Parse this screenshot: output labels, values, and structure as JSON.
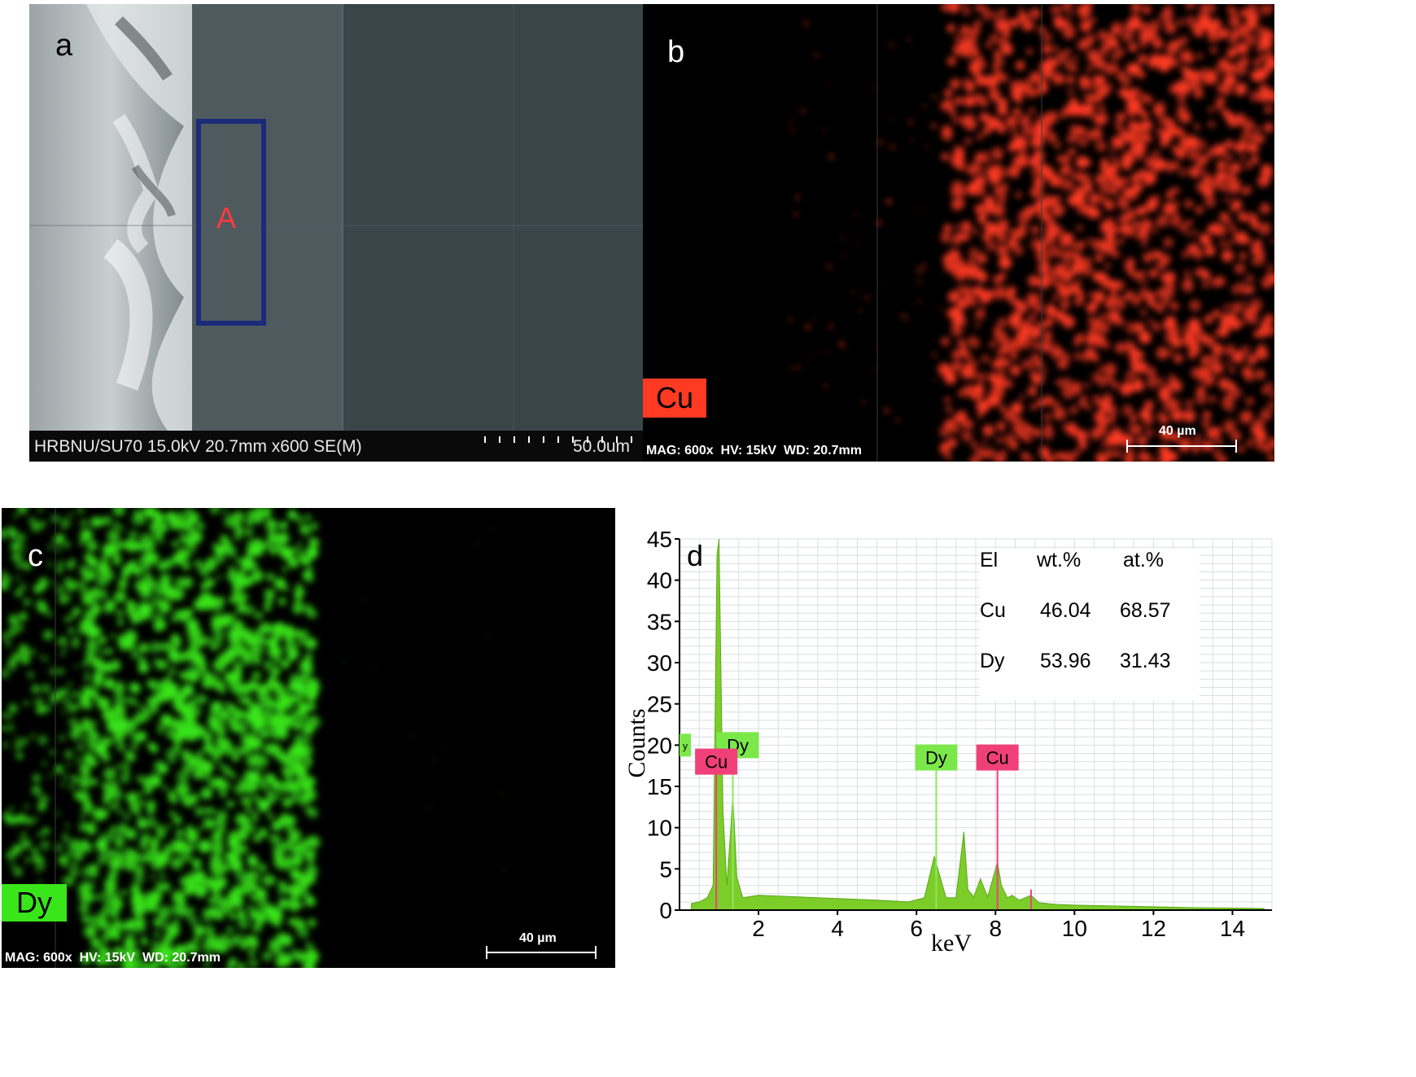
{
  "figure": {
    "panel_a": {
      "letter": "a",
      "region_label": "A",
      "info_bar": "HRBNU/SU70 15.0kV 20.7mm x600 SE(M)",
      "scale_label": "50.0um"
    },
    "panel_b": {
      "letter": "b",
      "element_tag": "Cu",
      "info_bar": "MAG: 600x  HV: 15kV  WD: 20.7mm",
      "scale_label": "40 µm"
    },
    "panel_c": {
      "letter": "c",
      "element_tag": "Dy",
      "info_bar": "MAG: 600x  HV: 15kV  WD: 20.7mm",
      "scale_label": "40 µm"
    },
    "panel_d": {
      "letter": "d",
      "composition_table": {
        "headers": [
          "El",
          "wt.%",
          "at.%"
        ],
        "rows": [
          [
            "Cu",
            "46.04",
            "68.57"
          ],
          [
            "Dy",
            "53.96",
            "31.43"
          ]
        ]
      }
    }
  },
  "colors": {
    "cu_map": "#ff3a22",
    "dy_map": "#39e61a",
    "spectrum_fill": "#7ccc2a",
    "cu_tag": "#f0407a",
    "dy_tag": "#7be84a",
    "sem_box": "#1c2a7a",
    "region_label": "#ff3b3b"
  },
  "chart_data": {
    "type": "area",
    "title": "",
    "xlabel": "keV",
    "ylabel": "Counts",
    "xlim": [
      0,
      15
    ],
    "ylim": [
      0,
      45
    ],
    "x_ticks": [
      2,
      4,
      6,
      8,
      10,
      12,
      14
    ],
    "y_ticks": [
      0,
      5,
      10,
      15,
      20,
      25,
      30,
      35,
      40,
      45
    ],
    "grid": true,
    "series": [
      {
        "x": [
          0.3,
          0.5,
          0.7,
          0.85,
          0.95,
          1.0,
          1.1,
          1.2,
          1.3,
          1.35,
          1.45,
          1.6,
          2.0,
          3.0,
          4.0,
          5.0,
          5.8,
          6.2,
          6.45,
          6.6,
          6.75,
          7.0,
          7.2,
          7.3,
          7.45,
          7.62,
          7.8,
          8.05,
          8.15,
          8.3,
          8.42,
          8.6,
          8.9,
          9.1,
          9.5,
          10.0,
          11.0,
          12.0,
          13.0,
          14.0,
          14.8
        ],
        "values": [
          0.8,
          1.0,
          1.5,
          3.0,
          43.0,
          45.0,
          12.0,
          3.0,
          10.0,
          14.0,
          4.0,
          1.5,
          1.8,
          1.6,
          1.4,
          1.2,
          1.0,
          1.5,
          6.5,
          4.0,
          1.5,
          1.5,
          9.5,
          2.5,
          1.6,
          3.8,
          1.6,
          5.8,
          3.0,
          1.5,
          1.8,
          1.2,
          1.8,
          0.9,
          0.7,
          0.6,
          0.5,
          0.4,
          0.3,
          0.25,
          0.2
        ]
      }
    ],
    "peak_labels": [
      {
        "label": "Dy",
        "x": 1.35,
        "value": 20.0
      },
      {
        "label": "Cu",
        "x": 0.93,
        "value": 18.0
      },
      {
        "label": "Dy",
        "x": 6.5,
        "value": 18.5
      },
      {
        "label": "Cu",
        "x": 8.05,
        "value": 18.5
      }
    ],
    "peak_label_cut": "y"
  }
}
